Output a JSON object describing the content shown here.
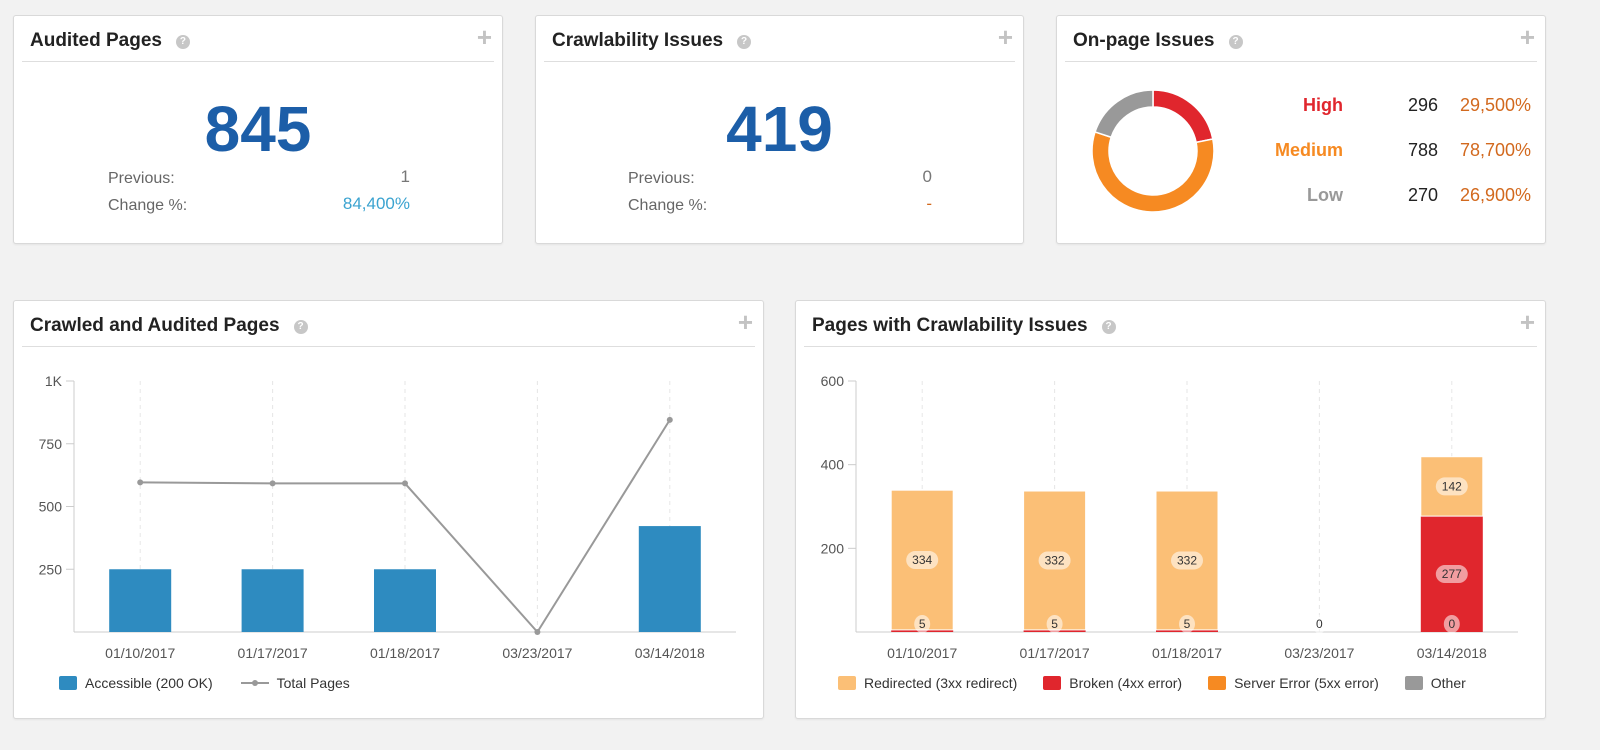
{
  "cards": {
    "audited": {
      "title": "Audited Pages",
      "value": "845",
      "previous_label": "Previous:",
      "previous_value": "1",
      "change_label": "Change %:",
      "change_value": "84,400%"
    },
    "crawlability": {
      "title": "Crawlability Issues",
      "value": "419",
      "previous_label": "Previous:",
      "previous_value": "0",
      "change_label": "Change %:",
      "change_value": "-"
    },
    "onpage": {
      "title": "On-page Issues",
      "rows": [
        {
          "label": "High",
          "count": "296",
          "pct": "29,500%",
          "color": "#e0262d"
        },
        {
          "label": "Medium",
          "count": "788",
          "pct": "78,700%",
          "color": "#f68a22"
        },
        {
          "label": "Low",
          "count": "270",
          "pct": "26,900%",
          "color": "#999999"
        }
      ]
    }
  },
  "chart_data": [
    {
      "name": "donut",
      "type": "pie",
      "title": "On-page Issues",
      "labels": [
        "High",
        "Medium",
        "Low"
      ],
      "values": [
        296,
        788,
        270
      ],
      "colors": [
        "#e0262d",
        "#f68a22",
        "#999999"
      ]
    },
    {
      "name": "crawled",
      "type": "bar",
      "title": "Crawled and Audited Pages",
      "categories": [
        "01/10/2017",
        "01/17/2017",
        "01/18/2017",
        "03/23/2017",
        "03/14/2018"
      ],
      "yticks": [
        "1K",
        "750",
        "500",
        "250"
      ],
      "ylim": [
        0,
        1000
      ],
      "series": [
        {
          "name": "Accessible (200 OK)",
          "kind": "bar",
          "color": "#2e8bc0",
          "values": [
            250,
            250,
            250,
            0,
            422
          ]
        },
        {
          "name": "Total Pages",
          "kind": "line",
          "color": "#999999",
          "values": [
            596,
            592,
            592,
            0,
            845
          ]
        }
      ]
    },
    {
      "name": "crawlissues",
      "type": "bar",
      "title": "Pages with Crawlability Issues",
      "categories": [
        "01/10/2017",
        "01/17/2017",
        "01/18/2017",
        "03/23/2017",
        "03/14/2018"
      ],
      "yticks": [
        "600",
        "400",
        "200"
      ],
      "ylim": [
        0,
        600
      ],
      "series": [
        {
          "name": "Redirected (3xx redirect)",
          "color": "#fbbf76",
          "values": [
            334,
            332,
            332,
            0,
            142
          ]
        },
        {
          "name": "Broken (4xx error)",
          "color": "#e0262d",
          "values": [
            5,
            5,
            5,
            0,
            277
          ]
        },
        {
          "name": "Server Error (5xx error)",
          "color": "#f68a22",
          "values": [
            0,
            0,
            0,
            0,
            0
          ]
        },
        {
          "name": "Other",
          "color": "#999999",
          "values": [
            0,
            0,
            0,
            0,
            0
          ]
        }
      ],
      "labels": {
        "redirected": [
          "334",
          "332",
          "332",
          "",
          "142"
        ],
        "broken": [
          "5",
          "5",
          "5",
          "",
          "277"
        ],
        "bottom": [
          "",
          "",
          "",
          "0",
          "0"
        ]
      }
    }
  ],
  "bottom": {
    "crawled_title": "Crawled and Audited Pages",
    "issues_title": "Pages with Crawlability Issues"
  },
  "icons": {
    "help": "?",
    "plus": "+"
  }
}
